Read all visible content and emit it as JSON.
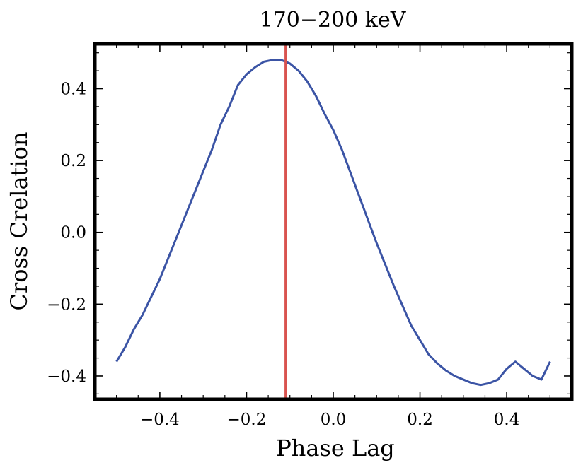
{
  "chart_data": {
    "type": "line",
    "title": "170−200 keV",
    "xlabel": "Phase Lag",
    "ylabel": "Cross Crelation",
    "xlim": [
      -0.55,
      0.55
    ],
    "ylim": [
      -0.465,
      0.525
    ],
    "x_ticks": [
      -0.4,
      -0.2,
      0.0,
      0.2,
      0.4
    ],
    "x_tick_labels": [
      "−0.4",
      "−0.2",
      "0.0",
      "0.2",
      "0.4"
    ],
    "y_ticks": [
      -0.4,
      -0.2,
      0.0,
      0.2,
      0.4
    ],
    "y_tick_labels": [
      "−0.4",
      "−0.2",
      "0.0",
      "0.2",
      "0.4"
    ],
    "grid": false,
    "series": [
      {
        "name": "cross-correlation",
        "color": "#3b54a5",
        "x": [
          -0.5,
          -0.48,
          -0.46,
          -0.44,
          -0.42,
          -0.4,
          -0.38,
          -0.36,
          -0.34,
          -0.32,
          -0.3,
          -0.28,
          -0.26,
          -0.24,
          -0.22,
          -0.2,
          -0.18,
          -0.16,
          -0.14,
          -0.12,
          -0.1,
          -0.08,
          -0.06,
          -0.04,
          -0.02,
          0.0,
          0.02,
          0.04,
          0.06,
          0.08,
          0.1,
          0.12,
          0.14,
          0.16,
          0.18,
          0.2,
          0.22,
          0.24,
          0.26,
          0.28,
          0.3,
          0.32,
          0.34,
          0.36,
          0.38,
          0.4,
          0.42,
          0.44,
          0.46,
          0.48,
          0.5
        ],
        "y": [
          -0.36,
          -0.32,
          -0.27,
          -0.23,
          -0.18,
          -0.13,
          -0.07,
          -0.01,
          0.05,
          0.11,
          0.17,
          0.23,
          0.3,
          0.35,
          0.41,
          0.44,
          0.46,
          0.475,
          0.48,
          0.48,
          0.47,
          0.45,
          0.42,
          0.38,
          0.33,
          0.285,
          0.23,
          0.165,
          0.1,
          0.035,
          -0.03,
          -0.09,
          -0.15,
          -0.205,
          -0.26,
          -0.3,
          -0.34,
          -0.365,
          -0.385,
          -0.4,
          -0.41,
          -0.42,
          -0.425,
          -0.42,
          -0.41,
          -0.38,
          -0.36,
          -0.38,
          -0.4,
          -0.41,
          -0.36
        ]
      }
    ],
    "vertical_line": {
      "x": -0.11,
      "color": "#d9534f"
    }
  }
}
